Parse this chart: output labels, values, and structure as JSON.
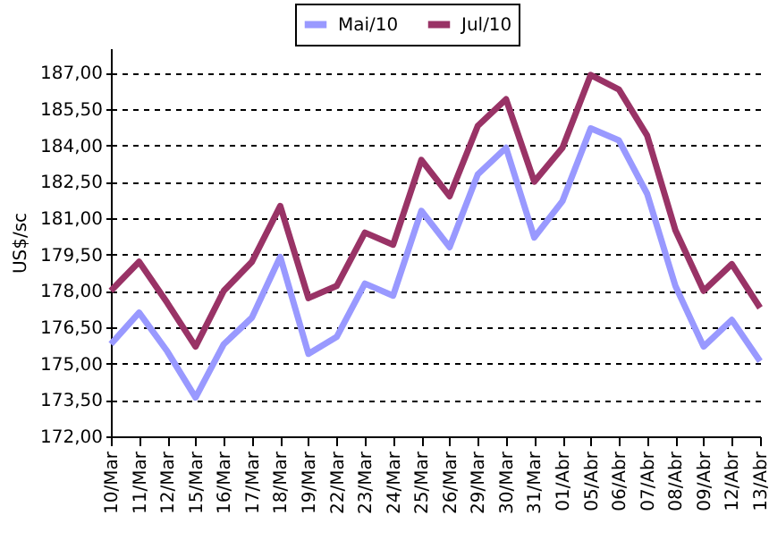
{
  "chart_data": {
    "type": "line",
    "ylabel": "US$/sc",
    "categories": [
      "10/Mar",
      "11/Mar",
      "12/Mar",
      "15/Mar",
      "16/Mar",
      "17/Mar",
      "18/Mar",
      "19/Mar",
      "22/Mar",
      "23/Mar",
      "24/Mar",
      "25/Mar",
      "26/Mar",
      "29/Mar",
      "30/Mar",
      "31/Mar",
      "01/Abr",
      "05/Abr",
      "06/Abr",
      "07/Abr",
      "08/Abr",
      "09/Abr",
      "12/Abr",
      "13/Abr"
    ],
    "series": [
      {
        "name": "Mai/10",
        "color": "#9999ff",
        "values": [
          175.8,
          177.1,
          175.5,
          173.6,
          175.8,
          176.9,
          179.4,
          175.4,
          176.1,
          178.3,
          177.8,
          181.3,
          179.8,
          182.8,
          183.9,
          180.2,
          181.7,
          184.7,
          184.2,
          182.0,
          178.2,
          175.7,
          176.8,
          175.1
        ]
      },
      {
        "name": "Jul/10",
        "color": "#993366",
        "values": [
          178.0,
          179.2,
          177.5,
          175.7,
          178.0,
          179.2,
          181.5,
          177.7,
          178.2,
          180.4,
          179.9,
          183.4,
          181.9,
          184.8,
          185.9,
          182.5,
          183.9,
          186.9,
          186.3,
          184.4,
          180.5,
          178.0,
          179.1,
          177.3
        ]
      }
    ],
    "ylim": [
      172,
      188
    ],
    "yticks": [
      {
        "value": 172,
        "label": "172,00"
      },
      {
        "value": 173.5,
        "label": "173,50"
      },
      {
        "value": 175,
        "label": "175,00"
      },
      {
        "value": 176.5,
        "label": "176,50"
      },
      {
        "value": 178,
        "label": "178,00"
      },
      {
        "value": 179.5,
        "label": "179,50"
      },
      {
        "value": 181,
        "label": "181,00"
      },
      {
        "value": 182.5,
        "label": "182,50"
      },
      {
        "value": 184,
        "label": "184,00"
      },
      {
        "value": 185.5,
        "label": "185,50"
      },
      {
        "value": 187,
        "label": "187,00"
      }
    ],
    "grid": "y",
    "legend": "top"
  }
}
